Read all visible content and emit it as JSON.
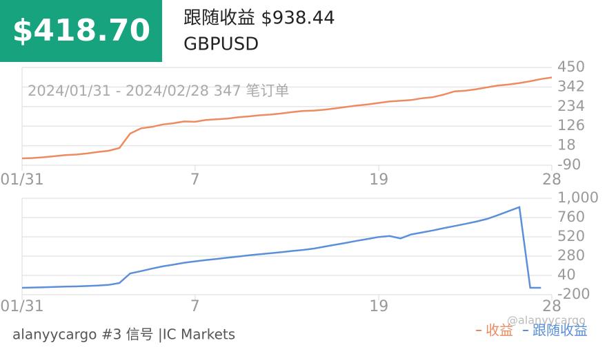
{
  "header": {
    "badge": "$418.70",
    "title": "跟随收益 $938.44",
    "symbol": "GBPUSD"
  },
  "chart_data": [
    {
      "type": "line",
      "subtitle": "2024/01/31 - 2024/02/28 347 笔订单",
      "xlim": [
        0,
        49
      ],
      "xticks": [
        {
          "value": 0,
          "label": "01/31"
        },
        {
          "value": 16,
          "label": "7"
        },
        {
          "value": 33,
          "label": "19"
        },
        {
          "value": 49,
          "label": "28"
        }
      ],
      "ylim": [
        -90,
        450
      ],
      "yticks": [
        -90,
        18,
        126,
        234,
        342,
        450
      ],
      "grid": true,
      "series": [
        {
          "name": "收益",
          "color": "#ee8a5f",
          "values": [
            -52,
            -50,
            -46,
            -40,
            -34,
            -31,
            -25,
            -17,
            -10,
            5,
            85,
            114,
            122,
            135,
            142,
            152,
            150,
            160,
            164,
            168,
            175,
            180,
            186,
            190,
            196,
            204,
            210,
            212,
            217,
            224,
            232,
            240,
            246,
            254,
            262,
            266,
            270,
            280,
            286,
            300,
            318,
            322,
            330,
            340,
            350,
            356,
            364,
            374,
            386,
            395
          ]
        }
      ]
    },
    {
      "type": "line",
      "xlim": [
        0,
        49
      ],
      "xticks": [
        {
          "value": 0,
          "label": "01/31"
        },
        {
          "value": 16,
          "label": "7"
        },
        {
          "value": 33,
          "label": "19"
        },
        {
          "value": 49,
          "label": "28"
        }
      ],
      "ylim": [
        -200,
        1000
      ],
      "yticks": [
        -200,
        40,
        280,
        520,
        760,
        {
          "value": 1000,
          "label": "1,000"
        }
      ],
      "grid": true,
      "series": [
        {
          "name": "跟随收益",
          "color": "#5b8fd9",
          "values": [
            -114,
            -111,
            -108,
            -104,
            -100,
            -97,
            -92,
            -86,
            -78,
            -55,
            65,
            93,
            124,
            152,
            174,
            198,
            215,
            230,
            245,
            261,
            275,
            290,
            303,
            316,
            330,
            344,
            357,
            374,
            399,
            422,
            446,
            471,
            494,
            518,
            530,
            500,
            550,
            575,
            600,
            628,
            655,
            681,
            709,
            743,
            789,
            840,
            890,
            -114,
            -114,
            null
          ]
        }
      ]
    }
  ],
  "footer": {
    "text": "alanyycargo #3 信号 |IC Markets",
    "watermark": "@alanyycargo"
  }
}
